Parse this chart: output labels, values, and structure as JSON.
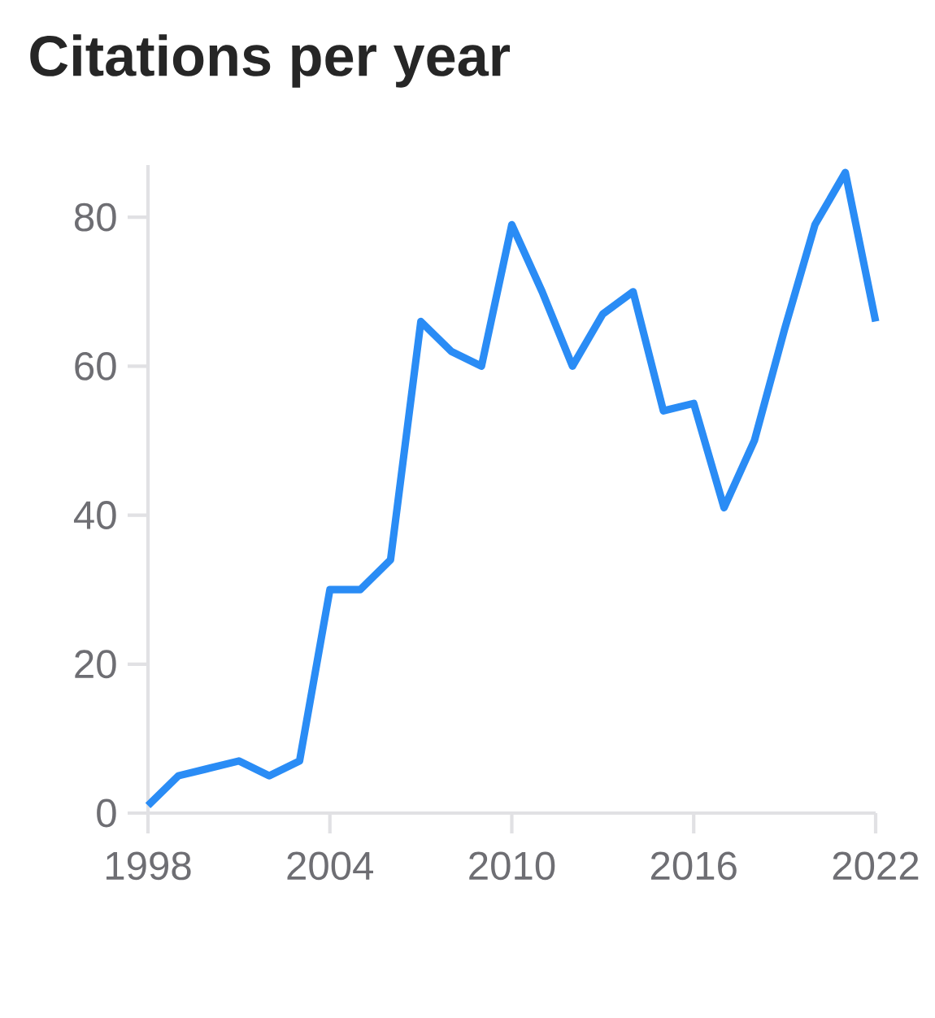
{
  "chart_data": {
    "type": "line",
    "title": "Citations per year",
    "x": [
      1998,
      1999,
      2000,
      2001,
      2002,
      2003,
      2004,
      2005,
      2006,
      2007,
      2008,
      2009,
      2010,
      2011,
      2012,
      2013,
      2014,
      2015,
      2016,
      2017,
      2018,
      2019,
      2020,
      2021,
      2022
    ],
    "series": [
      {
        "color": "#2a8cf5",
        "values": [
          1,
          5,
          6,
          7,
          5,
          7,
          30,
          30,
          34,
          66,
          62,
          60,
          79,
          70,
          60,
          67,
          70,
          54,
          55,
          41,
          50,
          65,
          79,
          86,
          66
        ]
      }
    ],
    "xlim": [
      1998,
      2022
    ],
    "ylim": [
      0,
      87
    ],
    "xticks": [
      1998,
      2004,
      2010,
      2016,
      2022
    ],
    "yticks": [
      0,
      20,
      40,
      60,
      80
    ],
    "grid": false
  }
}
